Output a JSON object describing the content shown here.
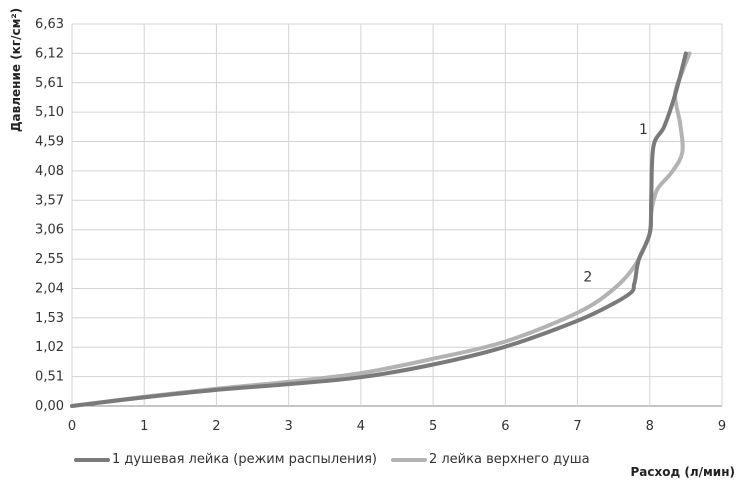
{
  "chart_data": {
    "type": "line",
    "xlabel": "Расход (л/мин)",
    "ylabel": "Давление (кг/см²)",
    "xlim": [
      0,
      9
    ],
    "ylim": [
      0,
      6.63
    ],
    "x_ticks": [
      "0",
      "1",
      "2",
      "3",
      "4",
      "5",
      "6",
      "7",
      "8",
      "9"
    ],
    "y_ticks": [
      "0,00",
      "0,51",
      "1,02",
      "1,53",
      "2,04",
      "2,55",
      "3,06",
      "3,57",
      "4,08",
      "4,59",
      "5,10",
      "5,61",
      "6,12",
      "6,63"
    ],
    "y_tick_values": [
      0,
      0.51,
      1.02,
      1.53,
      2.04,
      2.55,
      3.06,
      3.57,
      4.08,
      4.59,
      5.1,
      5.61,
      6.12,
      6.63
    ],
    "grid": true,
    "legend_position": "bottom-left",
    "series": [
      {
        "name": "1 душевая лейка (режим распыления)",
        "color": "#7a7a7a",
        "curve_label": "1",
        "x": [
          0,
          1,
          2,
          3,
          4,
          5,
          6,
          7,
          7.5,
          7.75,
          7.78,
          7.8,
          7.85,
          8.0,
          8.02,
          8.05,
          8.2,
          8.35,
          8.5
        ],
        "y": [
          0,
          0.15,
          0.28,
          0.38,
          0.5,
          0.72,
          1.03,
          1.48,
          1.78,
          1.98,
          2.1,
          2.2,
          2.55,
          3.0,
          3.6,
          4.5,
          4.85,
          5.4,
          6.12
        ]
      },
      {
        "name": "2 лейка верхнего душа",
        "color": "#b3b3b3",
        "curve_label": "2",
        "x": [
          0,
          1,
          2,
          3,
          4,
          5,
          6,
          7,
          7.5,
          7.8,
          8.0,
          8.02,
          8.1,
          8.3,
          8.45,
          8.42,
          8.35,
          8.45,
          8.55
        ],
        "y": [
          0,
          0.16,
          0.3,
          0.42,
          0.57,
          0.82,
          1.12,
          1.62,
          2.03,
          2.45,
          3.0,
          3.35,
          3.75,
          4.05,
          4.4,
          4.9,
          5.4,
          5.8,
          6.12
        ]
      }
    ]
  }
}
